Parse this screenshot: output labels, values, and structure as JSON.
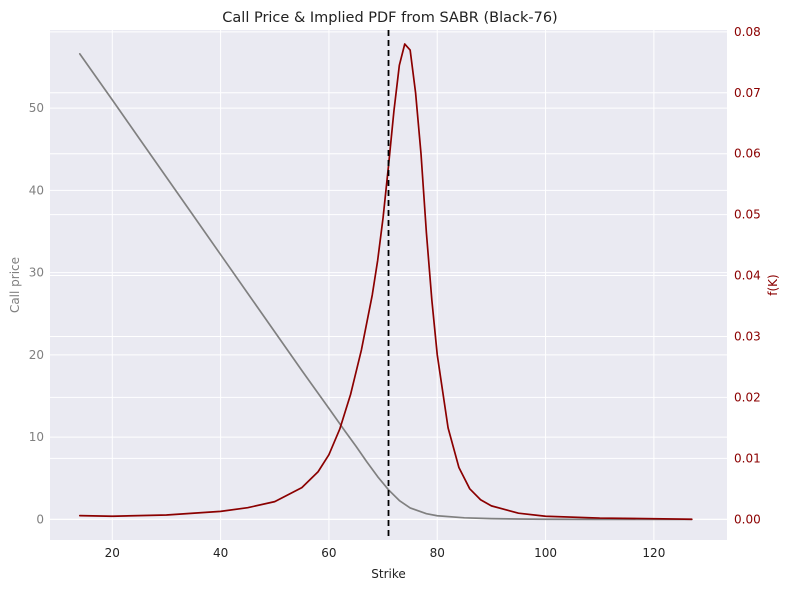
{
  "chart_data": {
    "type": "line",
    "title": "Call Price & Implied PDF from SABR (Black-76)",
    "xlabel": "Strike",
    "ylabel_left": "Call price",
    "ylabel_right": "f(K)",
    "xlim": [
      8.5,
      133.5
    ],
    "ylim_left": [
      -2.5,
      59.5
    ],
    "ylim_right": [
      -0.0034,
      0.0803
    ],
    "x_ticks": [
      20,
      40,
      60,
      80,
      100,
      120
    ],
    "y_ticks_left": [
      0,
      10,
      20,
      30,
      40,
      50
    ],
    "y_ticks_right": [
      "0.00",
      "0.01",
      "0.02",
      "0.03",
      "0.04",
      "0.05",
      "0.06",
      "0.07",
      "0.08"
    ],
    "grid": true,
    "vline": {
      "x": 71,
      "style": "dashed",
      "color": "#000000"
    },
    "colors": {
      "background": "#eaeaf2",
      "grid": "#ffffff",
      "call_price": "#808080",
      "pdf": "#8b0000",
      "left_axis_text": "#808080",
      "right_axis_text": "#8b0000"
    },
    "series": [
      {
        "axis": "left",
        "x": [
          14,
          20,
          25,
          30,
          35,
          40,
          45,
          50,
          55,
          60,
          63,
          65,
          67,
          69,
          71,
          73,
          75,
          78,
          80,
          85,
          90,
          95,
          100,
          110,
          120,
          127
        ],
        "y": [
          56.6,
          51.0,
          46.3,
          41.6,
          36.9,
          32.2,
          27.5,
          22.8,
          18.1,
          13.5,
          10.7,
          8.9,
          7.0,
          5.2,
          3.6,
          2.3,
          1.4,
          0.7,
          0.45,
          0.2,
          0.1,
          0.05,
          0.02,
          0.01,
          0.005,
          0.0
        ]
      },
      {
        "axis": "right",
        "x": [
          14,
          20,
          30,
          40,
          45,
          50,
          55,
          58,
          60,
          62,
          64,
          66,
          68,
          69,
          70,
          71,
          72,
          73,
          74,
          75,
          76,
          77,
          78,
          79,
          80,
          82,
          84,
          86,
          88,
          90,
          95,
          100,
          110,
          120,
          127
        ],
        "y": [
          0.0006,
          0.0005,
          0.0007,
          0.0013,
          0.0019,
          0.0029,
          0.0052,
          0.0078,
          0.0106,
          0.0148,
          0.0205,
          0.0278,
          0.0368,
          0.0425,
          0.0495,
          0.058,
          0.067,
          0.0745,
          0.078,
          0.077,
          0.07,
          0.06,
          0.047,
          0.036,
          0.027,
          0.015,
          0.0085,
          0.005,
          0.0032,
          0.0022,
          0.001,
          0.0005,
          0.0002,
          0.0001,
          0.0
        ]
      }
    ]
  }
}
